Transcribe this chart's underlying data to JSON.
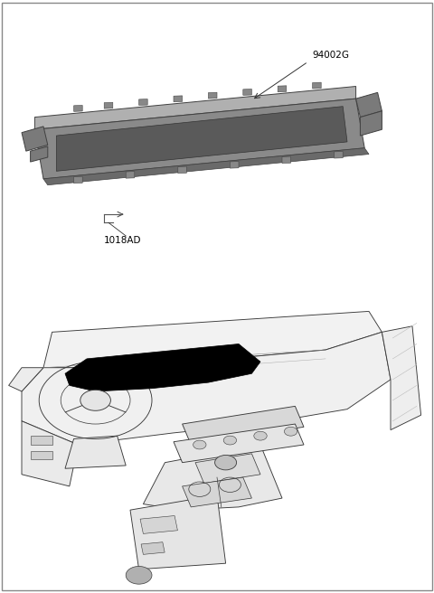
{
  "background_color": "#ffffff",
  "border_color": "#888888",
  "part_label_1": "94002G",
  "part_label_2": "1018AD",
  "cluster_body_color": "#8a8a8a",
  "cluster_top_color": "#b0b0b0",
  "cluster_bottom_color": "#6a6a6a",
  "cluster_screen_color": "#5a5a5a",
  "cluster_edge_color": "#404040",
  "line_color": "#3a3a3a",
  "black_fill": "#000000",
  "fig_width": 4.8,
  "fig_height": 6.56,
  "label_fontsize": 7.5
}
